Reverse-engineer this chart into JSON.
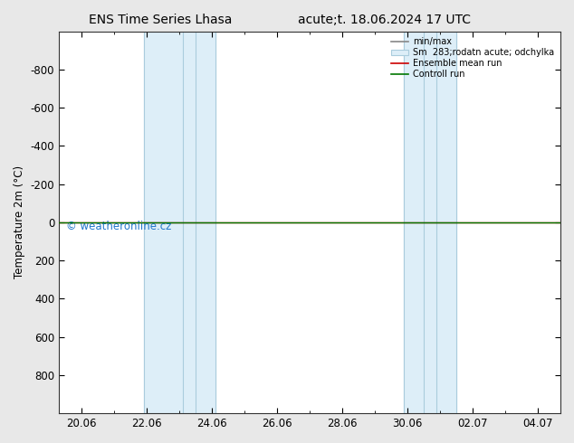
{
  "title_left": "ENS Time Series Lhasa",
  "title_right": "acute;t. 18.06.2024 17 UTC",
  "ylabel": "Temperature 2m (°C)",
  "ylim": [
    1000,
    -1000
  ],
  "yticks": [
    -800,
    -600,
    -400,
    -200,
    0,
    200,
    400,
    600,
    800
  ],
  "x_labels": [
    "20.06",
    "22.06",
    "24.06",
    "26.06",
    "28.06",
    "30.06",
    "02.07",
    "04.07"
  ],
  "x_values": [
    0,
    2,
    4,
    6,
    8,
    10,
    12,
    14
  ],
  "xlim": [
    -0.7,
    14.7
  ],
  "shade_bands": [
    [
      1.9,
      3.1
    ],
    [
      3.5,
      4.1
    ],
    [
      9.9,
      10.5
    ],
    [
      10.9,
      11.5
    ]
  ],
  "shade_color": "#ddeef8",
  "shade_edge_color": "#aaccdd",
  "control_run_y": 0,
  "ensemble_mean_y": 0,
  "background_color": "#e8e8e8",
  "plot_bg_color": "#ffffff",
  "watermark": "© weatheronline.cz",
  "watermark_color": "#2277cc",
  "legend_labels": [
    "min/max",
    "Sm  283;rodatn acute; odchylka",
    "Ensemble mean run",
    "Controll run"
  ],
  "control_color": "#007700",
  "ensemble_color": "#cc0000",
  "minmax_color": "#888888",
  "font_size": 8.5,
  "title_font_size": 10
}
